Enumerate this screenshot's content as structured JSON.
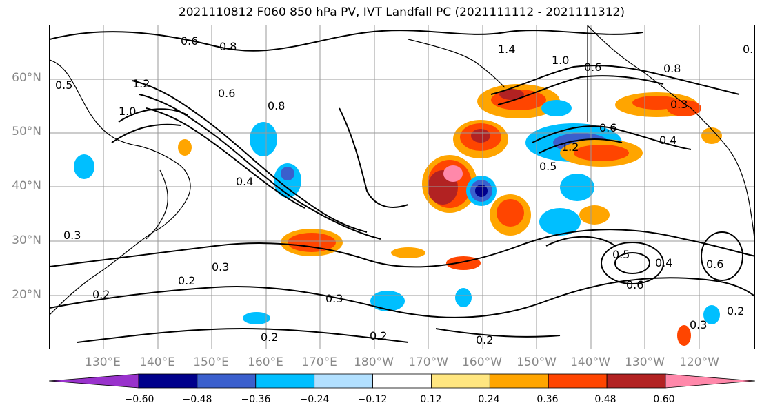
{
  "title": "2021110812 F060 850 hPa PV, IVT Landfall PC (2021111112 - 2021111312)",
  "latitude_labels": [
    "60°N",
    "50°N",
    "40°N",
    "30°N",
    "20°N"
  ],
  "longitude_labels": [
    "130°E",
    "140°E",
    "150°E",
    "160°E",
    "170°E",
    "180°W",
    "170°W",
    "160°W",
    "150°W",
    "140°W",
    "130°W",
    "120°W"
  ],
  "contour_labels": [
    "0.6",
    "0.8",
    "0.5",
    "1.2",
    "1.4",
    "1.0",
    "0.6",
    "0.8",
    "0.6",
    "0.8",
    "1.0",
    "0.3",
    "0.8",
    "0.4",
    "0.6",
    "0.5",
    "1.2",
    "0.4",
    "0.3",
    "0.2",
    "0.2",
    "0.3",
    "0.2",
    "0.2",
    "0.2",
    "0.5",
    "0.4",
    "0.6",
    "0.6",
    "0.3",
    "0.3",
    "0.2"
  ],
  "colorbar": {
    "ticks": [
      "−0.60",
      "−0.48",
      "−0.36",
      "−0.24",
      "−0.12",
      "0.12",
      "0.24",
      "0.36",
      "0.48",
      "0.60"
    ],
    "colors": [
      "#9932cc",
      "#00008b",
      "#3a5fcd",
      "#00bfff",
      "#b2e0ff",
      "#ffffff",
      "#ffe680",
      "#ffa500",
      "#ff4500",
      "#b22222",
      "#ff88aa"
    ]
  },
  "colors": {
    "neg_strong": "#00008b",
    "neg_mid": "#3a5fcd",
    "neg_weak": "#00bfff",
    "neg_faint": "#b2e0ff",
    "pos_faint": "#ffe680",
    "pos_weak": "#ffa500",
    "pos_mid": "#ff4500",
    "pos_strong": "#b22222",
    "pos_max": "#ff88aa"
  }
}
